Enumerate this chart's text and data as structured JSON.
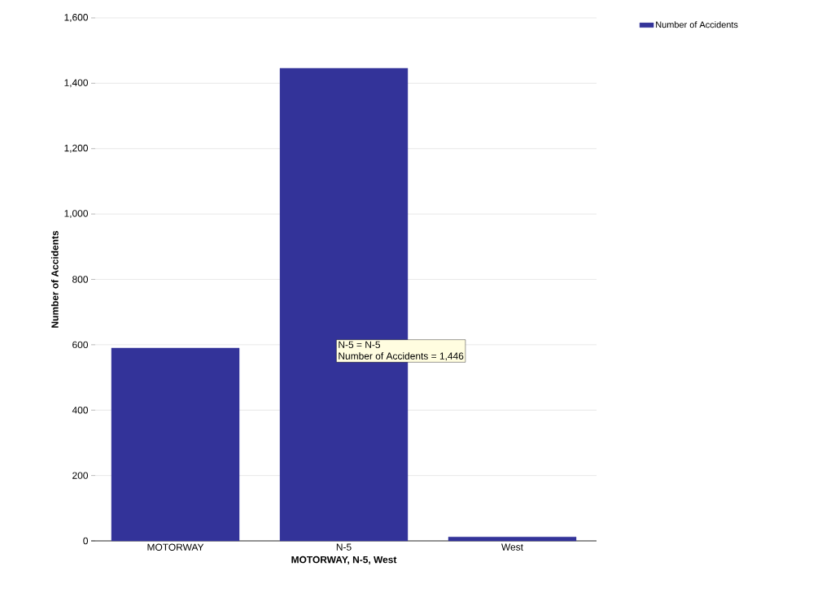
{
  "chart_data": {
    "type": "bar",
    "xlabel": "MOTORWAY, N-5, West",
    "ylabel": "Number of Accidents",
    "categories": [
      "MOTORWAY",
      "N-5",
      "West"
    ],
    "series": [
      {
        "name": "Number of Accidents",
        "color": "#333399",
        "values": [
          590,
          1446,
          12
        ]
      }
    ],
    "ylim": [
      0,
      1600
    ],
    "yticks": [
      {
        "value": 0,
        "label": "0"
      },
      {
        "value": 200,
        "label": "200"
      },
      {
        "value": 400,
        "label": "400"
      },
      {
        "value": 600,
        "label": "600"
      },
      {
        "value": 800,
        "label": "800"
      },
      {
        "value": 1000,
        "label": "1,000"
      },
      {
        "value": 1200,
        "label": "1,200"
      },
      {
        "value": 1400,
        "label": "1,400"
      },
      {
        "value": 1600,
        "label": "1,600"
      }
    ],
    "grid": "y",
    "legend": "top right",
    "annotations": [
      "N-5 = N-5",
      "Number of Accidents = 1,446"
    ]
  }
}
